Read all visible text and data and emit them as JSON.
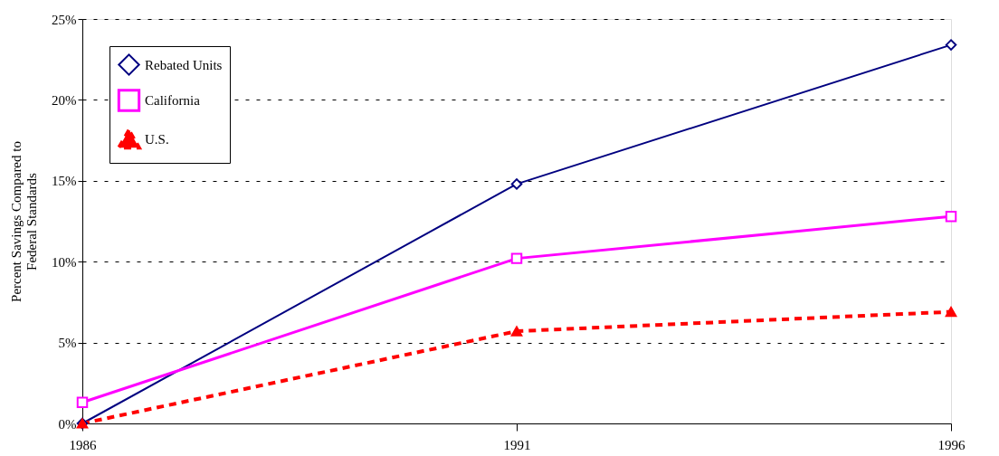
{
  "chart_data": {
    "type": "line",
    "ylabel": "Percent Savings Compared to\nFederal Standards",
    "x": [
      1986,
      1991,
      1996
    ],
    "xlim": [
      1986,
      1996
    ],
    "xticks": [
      1986,
      1991,
      1996
    ],
    "ylim": [
      0,
      25
    ],
    "yticks": [
      {
        "value": 0,
        "label": "0%"
      },
      {
        "value": 5,
        "label": "5%"
      },
      {
        "value": 10,
        "label": "10%"
      },
      {
        "value": 15,
        "label": "15%"
      },
      {
        "value": 20,
        "label": "20%"
      },
      {
        "value": 25,
        "label": "25%"
      }
    ],
    "grid": "y",
    "legend": "top left",
    "series": [
      {
        "name": "Rebated Units",
        "color": "#000080",
        "values": [
          0,
          14.8,
          23.4
        ],
        "marker": "diamond",
        "line_style": "solid"
      },
      {
        "name": "California",
        "color": "#ff00ff",
        "values": [
          1.3,
          10.2,
          12.8
        ],
        "marker": "square",
        "line_style": "solid"
      },
      {
        "name": "U.S.",
        "color": "#ff0000",
        "values": [
          0,
          5.7,
          6.9
        ],
        "marker": "triangle",
        "line_style": "dashed"
      }
    ]
  }
}
